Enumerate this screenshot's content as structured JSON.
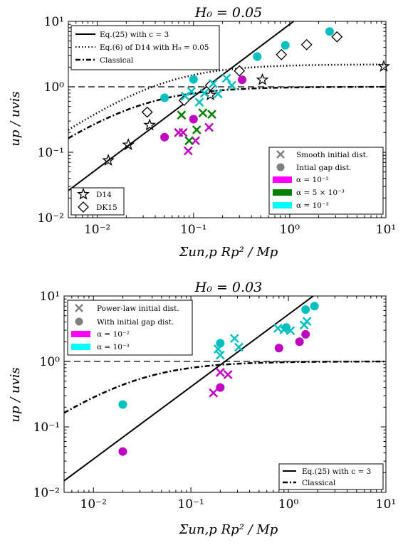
{
  "figure": {
    "colors": {
      "magenta": "#c000c0",
      "magenta_legend": "#ff00ff",
      "green": "#008000",
      "cyan": "#00bfbf",
      "cyan_legend": "#00ffff",
      "gray": "#808080",
      "black": "#000000"
    }
  },
  "chart_data": [
    {
      "type": "scatter",
      "title": "H₀ = 0.05",
      "xlabel": "Σun,p Rp² / Mp",
      "ylabel": "up / uvis",
      "xscale": "log",
      "yscale": "log",
      "xlim": [
        0.005,
        10
      ],
      "ylim": [
        0.01,
        10
      ],
      "x_ticks": [
        0.01,
        0.1,
        1.0,
        10
      ],
      "x_tick_labels": [
        "10⁻²",
        "10⁻¹",
        "10⁰",
        "10¹"
      ],
      "y_ticks": [
        0.01,
        0.1,
        1.0,
        10
      ],
      "y_tick_labels": [
        "10⁻²",
        "10⁻¹",
        "10⁰",
        "10¹"
      ],
      "grid": false,
      "legends": [
        {
          "placement": "top-left",
          "entries": [
            {
              "label": "Eq.(25) with c = 3",
              "style": "solid-line"
            },
            {
              "label": "Eq.(6) of D14 with H₀ = 0.05",
              "style": "dotted-line"
            },
            {
              "label": "Classical",
              "style": "dashdot-line"
            }
          ]
        },
        {
          "placement": "bottom-left",
          "entries": [
            {
              "label": "D14",
              "style": "star"
            },
            {
              "label": "DK15",
              "style": "diamond"
            }
          ]
        },
        {
          "placement": "bottom-right",
          "entries": [
            {
              "label": "Smooth initial dist.",
              "style": "gray-cross"
            },
            {
              "label": "Intial gap dist.",
              "style": "gray-circle"
            },
            {
              "label": "α = 10⁻²",
              "style": "magenta-patch"
            },
            {
              "label": "α = 5 × 10⁻³",
              "style": "green-patch"
            },
            {
              "label": "α = 10⁻³",
              "style": "cyan-patch"
            }
          ]
        }
      ],
      "lines": [
        {
          "name": "Eq.(25) with c = 3",
          "style": "solid",
          "x": [
            0.005,
            1.1
          ],
          "y": [
            0.026,
            10
          ]
        },
        {
          "name": "Eq.(6) of D14 with H₀ = 0.05",
          "style": "dotted",
          "kind": "saturating",
          "scale": 0.045,
          "max": 2.2
        },
        {
          "name": "Classical",
          "style": "dashdot",
          "kind": "saturating",
          "scale": 0.0255,
          "max": 1.0
        },
        {
          "name": "unity",
          "style": "dashed",
          "x": [
            0.005,
            10
          ],
          "y": [
            1.0,
            1.0
          ]
        }
      ],
      "series": [
        {
          "name": "D14",
          "marker": "star",
          "color": "#000000",
          "x": [
            0.013,
            0.021,
            0.035,
            0.15,
            0.52,
            9.5
          ],
          "y": [
            0.075,
            0.13,
            0.26,
            0.75,
            1.28,
            2.05
          ]
        },
        {
          "name": "DK15",
          "marker": "diamond",
          "color": "#000000",
          "x": [
            0.033,
            0.08,
            0.15,
            0.3,
            0.82,
            1.5,
            3.1
          ],
          "y": [
            0.41,
            0.62,
            1.05,
            1.75,
            3.1,
            4.4,
            5.8
          ]
        },
        {
          "name": "Smooth initial dist., α = 10⁻²",
          "marker": "x",
          "color": "#c000c0",
          "x": [
            0.07,
            0.078,
            0.088,
            0.105,
            0.145
          ],
          "y": [
            0.2,
            0.2,
            0.105,
            0.15,
            0.24
          ]
        },
        {
          "name": "Smooth initial dist., α = 5 × 10⁻³",
          "marker": "x",
          "color": "#008000",
          "x": [
            0.075,
            0.09,
            0.108,
            0.125,
            0.155
          ],
          "y": [
            0.37,
            0.15,
            0.22,
            0.4,
            0.38
          ]
        },
        {
          "name": "Smooth initial dist., α = 10⁻³",
          "marker": "x",
          "color": "#00bfbf",
          "x": [
            0.082,
            0.095,
            0.115,
            0.13,
            0.16,
            0.18,
            0.22,
            0.25
          ],
          "y": [
            0.72,
            0.85,
            0.58,
            0.8,
            1.12,
            0.78,
            1.35,
            1.05
          ]
        },
        {
          "name": "Intial gap dist., α = 10⁻²",
          "marker": "circle",
          "color": "#c000c0",
          "x": [
            0.05,
            0.1,
            0.32
          ],
          "y": [
            0.17,
            0.32,
            1.28
          ]
        },
        {
          "name": "Intial gap dist., α = 10⁻³",
          "marker": "circle",
          "color": "#00bfbf",
          "x": [
            0.05,
            0.1,
            0.46,
            0.9,
            2.6
          ],
          "y": [
            0.68,
            1.3,
            2.9,
            4.3,
            7.0
          ]
        }
      ]
    },
    {
      "type": "scatter",
      "title": "H₀ = 0.03",
      "xlabel": "Σun,p Rp² / Mp",
      "ylabel": "up / uvis",
      "xscale": "log",
      "yscale": "log",
      "xlim": [
        0.005,
        10
      ],
      "ylim": [
        0.01,
        10
      ],
      "x_ticks": [
        0.01,
        0.1,
        1.0,
        10
      ],
      "x_tick_labels": [
        "10⁻²",
        "10⁻¹",
        "10⁰",
        "10¹"
      ],
      "y_ticks": [
        0.01,
        0.1,
        1.0,
        10
      ],
      "y_tick_labels": [
        "10⁻²",
        "10⁻¹",
        "10⁰",
        "10¹"
      ],
      "grid": false,
      "legends": [
        {
          "placement": "top-left",
          "entries": [
            {
              "label": "Power-law initial dist.",
              "style": "gray-cross"
            },
            {
              "label": "With initial gap dist.",
              "style": "gray-circle"
            },
            {
              "label": "α = 10⁻²",
              "style": "magenta-patch"
            },
            {
              "label": "α = 10⁻³",
              "style": "cyan-patch"
            }
          ]
        },
        {
          "placement": "bottom-right",
          "entries": [
            {
              "label": "Eq.(25) with c = 3",
              "style": "solid-line"
            },
            {
              "label": "Classical",
              "style": "dashdot-line"
            }
          ]
        }
      ],
      "lines": [
        {
          "name": "Eq.(25) with c = 3",
          "style": "solid",
          "x": [
            0.005,
            1.8
          ],
          "y": [
            0.015,
            10
          ]
        },
        {
          "name": "Classical",
          "style": "dashdot",
          "kind": "saturating",
          "scale": 0.0255,
          "max": 1.0
        },
        {
          "name": "unity",
          "style": "dashed",
          "x": [
            0.005,
            10
          ],
          "y": [
            1.0,
            1.0
          ]
        }
      ],
      "series": [
        {
          "name": "Power-law initial dist., α = 10⁻²",
          "marker": "x",
          "color": "#c000c0",
          "x": [
            0.17,
            0.2,
            0.24
          ],
          "y": [
            0.33,
            0.68,
            0.63
          ]
        },
        {
          "name": "Power-law initial dist., α = 10⁻³",
          "marker": "x",
          "color": "#00bfbf",
          "x": [
            0.19,
            0.2,
            0.28,
            0.31,
            0.78,
            0.9,
            1.05,
            1.45,
            1.55
          ],
          "y": [
            1.55,
            1.25,
            2.25,
            1.65,
            3.2,
            3.05,
            2.95,
            3.6,
            4.1
          ]
        },
        {
          "name": "With initial gap dist., α = 10⁻²",
          "marker": "circle",
          "color": "#c000c0",
          "x": [
            0.02,
            0.2,
            0.8,
            1.3,
            1.5
          ],
          "y": [
            0.042,
            0.4,
            1.6,
            2.0,
            2.6
          ]
        },
        {
          "name": "With initial gap dist., α = 10⁻³",
          "marker": "circle",
          "color": "#00bfbf",
          "x": [
            0.02,
            0.2,
            0.95,
            1.5,
            1.85
          ],
          "y": [
            0.22,
            1.9,
            3.3,
            6.2,
            7.0
          ]
        }
      ]
    }
  ]
}
